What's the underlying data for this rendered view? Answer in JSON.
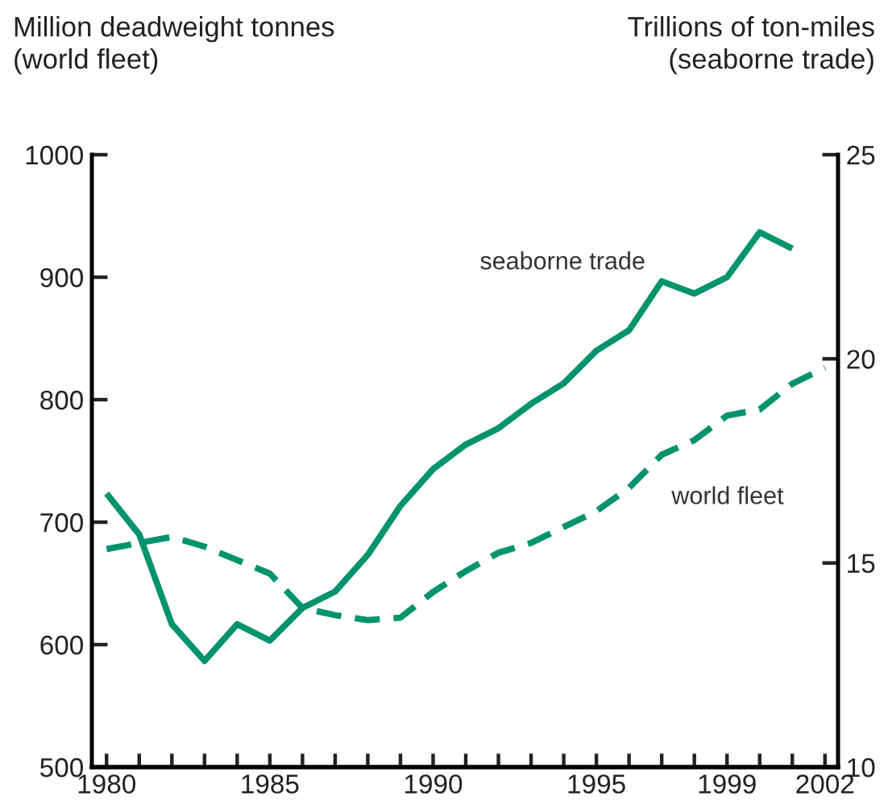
{
  "chart_data": {
    "type": "line",
    "ylabel": "Million deadweight tonnes\n(world fleet)",
    "y2label": "Trillions of ton-miles\n(seaborne trade)",
    "x": [
      1980,
      1981,
      1982,
      1983,
      1984,
      1985,
      1986,
      1987,
      1988,
      1989,
      1990,
      1991,
      1992,
      1993,
      1994,
      1995,
      1996,
      1997,
      1998,
      1999,
      2000,
      2001,
      2002
    ],
    "series": [
      {
        "name": "seaborne trade",
        "color": "#00936e",
        "axis": "y2",
        "line_style": "solid",
        "values": [
          16.7,
          15.7,
          13.5,
          12.6,
          13.5,
          13.1,
          13.9,
          14.3,
          15.2,
          16.4,
          17.3,
          17.9,
          18.3,
          18.9,
          19.4,
          20.2,
          20.7,
          21.9,
          21.6,
          22.0,
          23.1,
          22.7,
          null
        ]
      },
      {
        "name": "world fleet",
        "color": "#00936e",
        "line_style": "dashed",
        "values": [
          678,
          683,
          688,
          680,
          669,
          658,
          630,
          624,
          620,
          622,
          643,
          660,
          675,
          683,
          696,
          709,
          728,
          755,
          767,
          787,
          792,
          813,
          826
        ]
      }
    ],
    "xlim": [
      1979.55,
      2002.4
    ],
    "xticks": [
      1980,
      {
        "value": 1981,
        "label": null
      },
      {
        "value": 1982,
        "label": null
      },
      {
        "value": 1983,
        "label": null
      },
      {
        "value": 1984,
        "label": null
      },
      1985,
      {
        "value": 1986,
        "label": null
      },
      {
        "value": 1987,
        "label": null
      },
      {
        "value": 1988,
        "label": null
      },
      {
        "value": 1989,
        "label": null
      },
      1990,
      {
        "value": 1991,
        "label": null
      },
      {
        "value": 1992,
        "label": null
      },
      {
        "value": 1993,
        "label": null
      },
      {
        "value": 1994,
        "label": null
      },
      1995,
      {
        "value": 1996,
        "label": null
      },
      {
        "value": 1997,
        "label": null
      },
      {
        "value": 1998,
        "label": null
      },
      1999,
      {
        "value": 2000,
        "label": null
      },
      {
        "value": 2001,
        "label": null
      },
      2002
    ],
    "ylim": [
      500,
      1000
    ],
    "yticks": [
      500,
      600,
      700,
      800,
      900,
      1000
    ],
    "y2lim": [
      10,
      25
    ],
    "y2ticks": [
      10,
      15,
      20,
      25
    ],
    "grid": false,
    "legend": false,
    "marker": "none"
  }
}
